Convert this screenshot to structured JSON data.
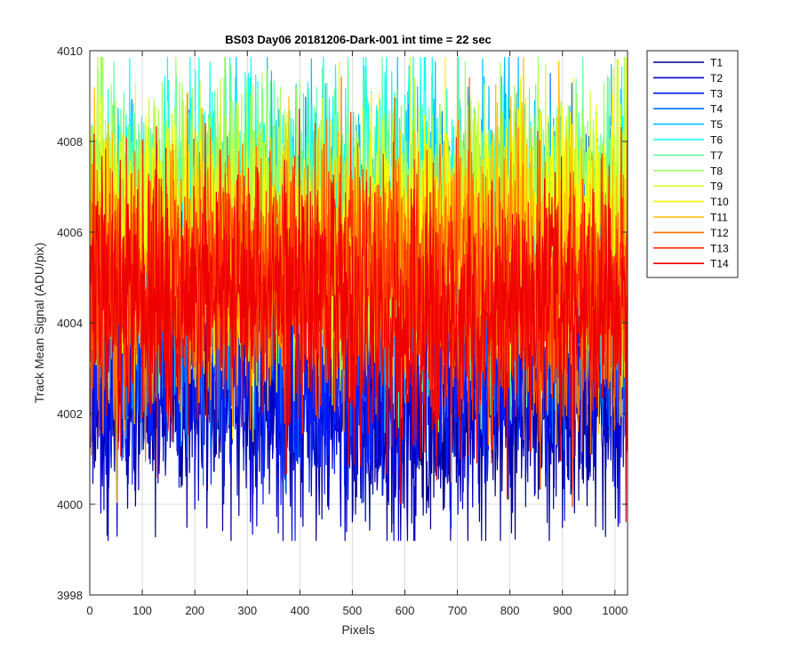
{
  "chart_data": {
    "type": "line",
    "title": "BS03 Day06 20181206-Dark-001 int time = 22 sec",
    "xlabel": "Pixels",
    "ylabel": "Track Mean Signal (ADU/pix)",
    "xlim": [
      0,
      1024
    ],
    "ylim": [
      3998,
      4010
    ],
    "xticks": [
      0,
      100,
      200,
      300,
      400,
      500,
      600,
      700,
      800,
      900,
      1000
    ],
    "yticks": [
      3998,
      4000,
      4002,
      4004,
      4006,
      4008,
      4010
    ],
    "grid": true,
    "legend_position": "outside-top-right",
    "series": [
      {
        "name": "T1",
        "color": "#00008F",
        "mean": 4002.3,
        "noise": 1.3,
        "seed": 11
      },
      {
        "name": "T2",
        "color": "#0000CC",
        "mean": 4002.5,
        "noise": 1.3,
        "seed": 23
      },
      {
        "name": "T3",
        "color": "#0020FF",
        "mean": 4003.2,
        "noise": 1.3,
        "seed": 37
      },
      {
        "name": "T4",
        "color": "#0070FF",
        "mean": 4005.0,
        "noise": 1.6,
        "seed": 41
      },
      {
        "name": "T5",
        "color": "#00BFFF",
        "mean": 4006.0,
        "noise": 1.5,
        "seed": 53
      },
      {
        "name": "T6",
        "color": "#10FFEF",
        "mean": 4006.5,
        "noise": 1.4,
        "seed": 67
      },
      {
        "name": "T7",
        "color": "#60FFA0",
        "mean": 4006.2,
        "noise": 1.4,
        "seed": 71
      },
      {
        "name": "T8",
        "color": "#A0FF60",
        "mean": 4006.4,
        "noise": 1.4,
        "seed": 83
      },
      {
        "name": "T9",
        "color": "#D0FF30",
        "mean": 4006.0,
        "noise": 1.4,
        "seed": 97
      },
      {
        "name": "T10",
        "color": "#FFFF00",
        "mean": 4005.8,
        "noise": 1.4,
        "seed": 101
      },
      {
        "name": "T11",
        "color": "#FFBF00",
        "mean": 4005.3,
        "noise": 1.4,
        "seed": 113
      },
      {
        "name": "T12",
        "color": "#FF7000",
        "mean": 4005.0,
        "noise": 1.4,
        "seed": 127
      },
      {
        "name": "T13",
        "color": "#FF3000",
        "mean": 4004.7,
        "noise": 1.3,
        "seed": 131
      },
      {
        "name": "T14",
        "color": "#EF0000",
        "mean": 4004.2,
        "noise": 1.4,
        "seed": 149
      }
    ]
  }
}
